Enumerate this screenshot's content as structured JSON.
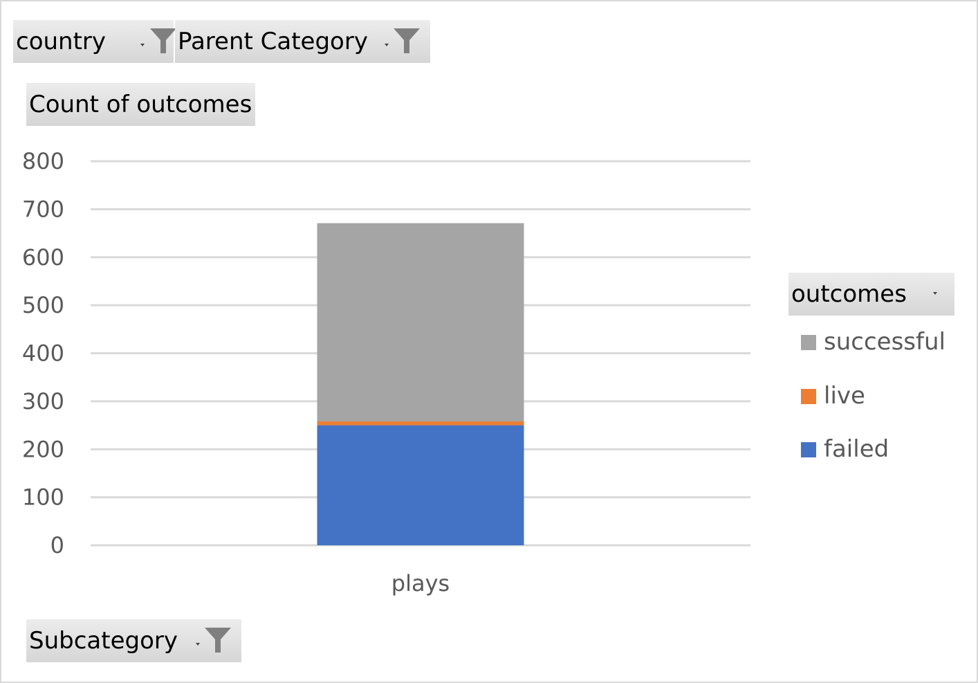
{
  "filters": {
    "country": "country",
    "parent_category": "Parent Category",
    "value_field": "Count of outcomes",
    "subcategory": "Subcategory",
    "legend_field": "outcomes"
  },
  "chart_data": {
    "type": "bar",
    "stacked": true,
    "categories": [
      "plays"
    ],
    "series": [
      {
        "name": "failed",
        "values": [
          250
        ],
        "color": "#4472c4"
      },
      {
        "name": "live",
        "values": [
          8
        ],
        "color": "#ed7d31"
      },
      {
        "name": "successful",
        "values": [
          413
        ],
        "color": "#a5a5a5"
      }
    ],
    "ylim": [
      0,
      800
    ],
    "yticks": [
      "0",
      "100",
      "200",
      "300",
      "400",
      "500",
      "600",
      "700",
      "800"
    ],
    "grid": true,
    "legend_position": "right",
    "legend_order": [
      "successful",
      "live",
      "failed"
    ],
    "title": "",
    "xlabel": "",
    "ylabel": ""
  },
  "icons": {
    "filter": "filter-icon",
    "dropdown": "dropdown-caret-icon"
  }
}
